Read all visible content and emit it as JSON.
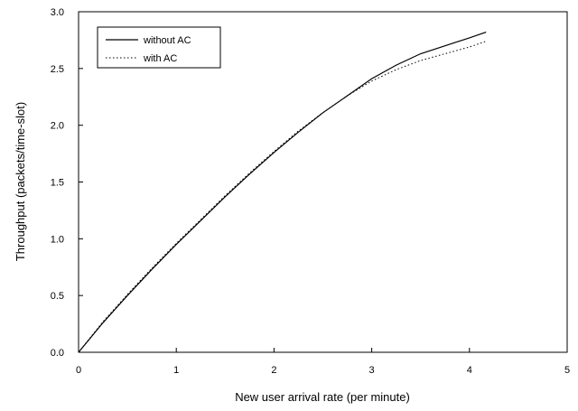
{
  "chart_data": {
    "type": "line",
    "xlabel": "New user arrival rate (per minute)",
    "ylabel": "Throughput (packets/time-slot)",
    "xlim": [
      0,
      5
    ],
    "ylim": [
      0.0,
      3.0
    ],
    "x_ticks": [
      "0",
      "1",
      "2",
      "3",
      "4",
      "5"
    ],
    "y_ticks": [
      "0.0",
      "0.5",
      "1.0",
      "1.5",
      "2.0",
      "2.5",
      "3.0"
    ],
    "grid": false,
    "legend_position": "top-left",
    "series": [
      {
        "name": "without AC",
        "style": "solid",
        "color": "#000000",
        "x": [
          0,
          0.25,
          0.5,
          0.75,
          1.0,
          1.25,
          1.5,
          1.75,
          2.0,
          2.25,
          2.5,
          2.75,
          3.0,
          3.25,
          3.5,
          3.75,
          4.0,
          4.17
        ],
        "y": [
          0.0,
          0.26,
          0.5,
          0.73,
          0.95,
          1.16,
          1.37,
          1.57,
          1.76,
          1.94,
          2.11,
          2.26,
          2.41,
          2.53,
          2.63,
          2.7,
          2.77,
          2.82
        ]
      },
      {
        "name": "with AC",
        "style": "dotted",
        "color": "#000000",
        "x": [
          0,
          0.25,
          0.5,
          0.75,
          1.0,
          1.25,
          1.5,
          1.75,
          2.0,
          2.25,
          2.5,
          2.75,
          3.0,
          3.25,
          3.5,
          3.75,
          4.0,
          4.17
        ],
        "y": [
          0.0,
          0.27,
          0.51,
          0.74,
          0.96,
          1.17,
          1.38,
          1.58,
          1.77,
          1.95,
          2.11,
          2.26,
          2.39,
          2.49,
          2.57,
          2.63,
          2.69,
          2.74
        ]
      }
    ]
  }
}
